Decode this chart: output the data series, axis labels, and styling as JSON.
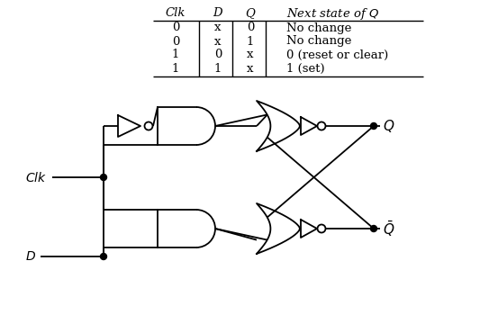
{
  "table": {
    "headers": [
      "Clk",
      "D",
      "Q",
      "Next state of Q"
    ],
    "rows": [
      [
        "0",
        "x",
        "0",
        "No change"
      ],
      [
        "0",
        "x",
        "1",
        "No change"
      ],
      [
        "1",
        "0",
        "x",
        "0 (reset or clear)"
      ],
      [
        "1",
        "1",
        "x",
        "1 (set)"
      ]
    ]
  },
  "circuit": {
    "line_color": "#000000",
    "lw": 1.3
  }
}
